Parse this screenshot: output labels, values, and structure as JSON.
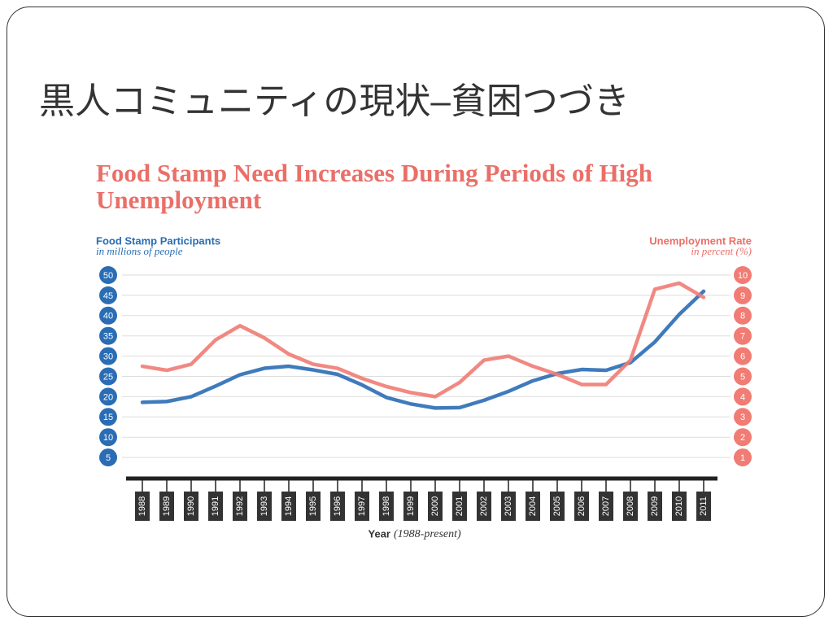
{
  "slide_title": "黒人コミュニティの現状–貧困つづき",
  "chart_data": {
    "type": "line",
    "title": "Food Stamp Need Increases During Periods of High Unemployment",
    "y_label": "Food Stamp Participants",
    "y_label_note": "in millions of people",
    "y2_label": "Unemployment Rate",
    "y2_label_note": "in percent (%)",
    "x_label": "Year",
    "x_label_note": "(1988-present)",
    "categories": [
      "1988",
      "1989",
      "1990",
      "1991",
      "1992",
      "1993",
      "1994",
      "1995",
      "1996",
      "1997",
      "1998",
      "1999",
      "2000",
      "2001",
      "2002",
      "2003",
      "2004",
      "2005",
      "2006",
      "2007",
      "2008",
      "2009",
      "2010",
      "2011"
    ],
    "series": [
      {
        "name": "Food Stamp Participants",
        "color": "#2a6db5",
        "axis": "y",
        "values": [
          18.6,
          18.8,
          20,
          22.6,
          25.4,
          27,
          27.5,
          26.6,
          25.5,
          22.9,
          19.8,
          18.2,
          17.2,
          17.3,
          19.1,
          21.3,
          23.9,
          25.7,
          26.7,
          26.5,
          28.4,
          33.5,
          40.3,
          46
        ]
      },
      {
        "name": "Unemployment Rate",
        "color": "#f07c74",
        "axis": "y2",
        "values": [
          5.5,
          5.3,
          5.6,
          6.8,
          7.5,
          6.9,
          6.1,
          5.6,
          5.4,
          4.9,
          4.5,
          4.2,
          4.0,
          4.7,
          5.8,
          6.0,
          5.5,
          5.1,
          4.6,
          4.6,
          5.8,
          9.3,
          9.6,
          8.9
        ]
      }
    ],
    "ylim": [
      0,
      50
    ],
    "yticks": [
      5,
      10,
      15,
      20,
      25,
      30,
      35,
      40,
      45,
      50
    ],
    "y2lim": [
      0,
      10
    ],
    "y2ticks": [
      1,
      2,
      3,
      4,
      5,
      6,
      7,
      8,
      9,
      10
    ],
    "grid": true
  }
}
